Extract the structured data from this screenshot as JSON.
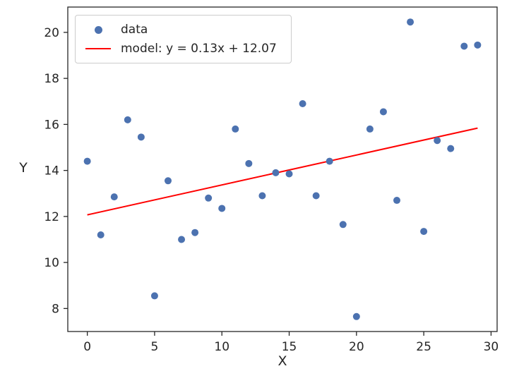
{
  "chart_data": {
    "type": "scatter",
    "title": "",
    "xlabel": "X",
    "ylabel": "Y",
    "xlim": [
      -1.45,
      30.45
    ],
    "ylim": [
      7.0,
      21.1
    ],
    "xticks": [
      0,
      5,
      10,
      15,
      20,
      25,
      30
    ],
    "yticks": [
      8,
      10,
      12,
      14,
      16,
      18,
      20
    ],
    "grid": false,
    "legend_position": "upper left",
    "axis_color": "#262626",
    "series": [
      {
        "name": "data",
        "type": "scatter",
        "color": "#4C72B0",
        "x": [
          0,
          1,
          2,
          3,
          4,
          5,
          6,
          7,
          8,
          9,
          10,
          11,
          12,
          13,
          14,
          15,
          16,
          17,
          18,
          19,
          20,
          21,
          22,
          23,
          24,
          25,
          26,
          27,
          28,
          29
        ],
        "y": [
          14.4,
          11.2,
          12.85,
          16.2,
          15.45,
          8.55,
          13.55,
          11.0,
          11.3,
          12.8,
          12.35,
          15.8,
          14.3,
          12.9,
          13.9,
          13.85,
          16.9,
          12.9,
          14.4,
          11.65,
          7.65,
          15.8,
          16.55,
          12.7,
          20.45,
          11.35,
          15.3,
          14.95,
          19.4,
          19.45
        ]
      },
      {
        "name": "model: y = 0.13x + 12.07",
        "type": "line",
        "color": "#FF0000",
        "slope": 0.13,
        "intercept": 12.07,
        "x_range": [
          0,
          29
        ]
      }
    ]
  },
  "legend": {
    "items": [
      {
        "label": "data",
        "marker": "dot-icon"
      },
      {
        "label": "model: y = 0.13x + 12.07",
        "marker": "line-icon"
      }
    ]
  }
}
